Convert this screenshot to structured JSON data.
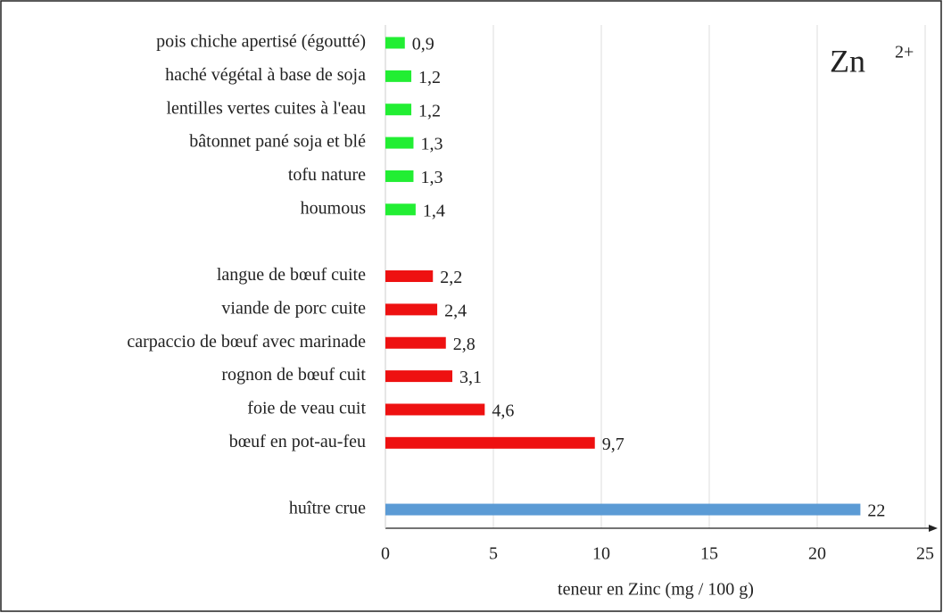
{
  "chart_data": {
    "type": "hbar",
    "annotation": "Zn",
    "annotation_sup": "2+",
    "x_label": "teneur en Zinc (mg / 100 g)",
    "categories": [
      "pois chiche apertisé (égoutté)",
      "haché végétal à base de soja",
      "lentilles vertes cuites à l'eau",
      "bâtonnet pané soja et blé",
      "tofu nature",
      "houmous",
      null,
      "langue de bœuf cuite",
      "viande de porc cuite",
      "carpaccio de bœuf avec marinade",
      "rognon de bœuf cuit",
      "foie de veau cuit",
      "bœuf en pot-au-feu",
      null,
      "huître crue"
    ],
    "values": [
      0.9,
      1.2,
      1.2,
      1.3,
      1.3,
      1.4,
      null,
      2.2,
      2.4,
      2.8,
      3.1,
      4.6,
      9.7,
      null,
      22
    ],
    "value_labels": [
      "0,9",
      "1,2",
      "1,2",
      "1,3",
      "1,3",
      "1,4",
      null,
      "2,2",
      "2,4",
      "2,8",
      "3,1",
      "4,6",
      "9,7",
      null,
      "22"
    ],
    "colors": [
      "#22ee33",
      "#22ee33",
      "#22ee33",
      "#22ee33",
      "#22ee33",
      "#22ee33",
      null,
      "#ee1111",
      "#ee1111",
      "#ee1111",
      "#ee1111",
      "#ee1111",
      "#ee1111",
      null,
      "#5b9bd5"
    ],
    "xlim": [
      0,
      25
    ],
    "xticks": [
      0,
      5,
      10,
      15,
      20,
      25
    ],
    "grid": true
  }
}
